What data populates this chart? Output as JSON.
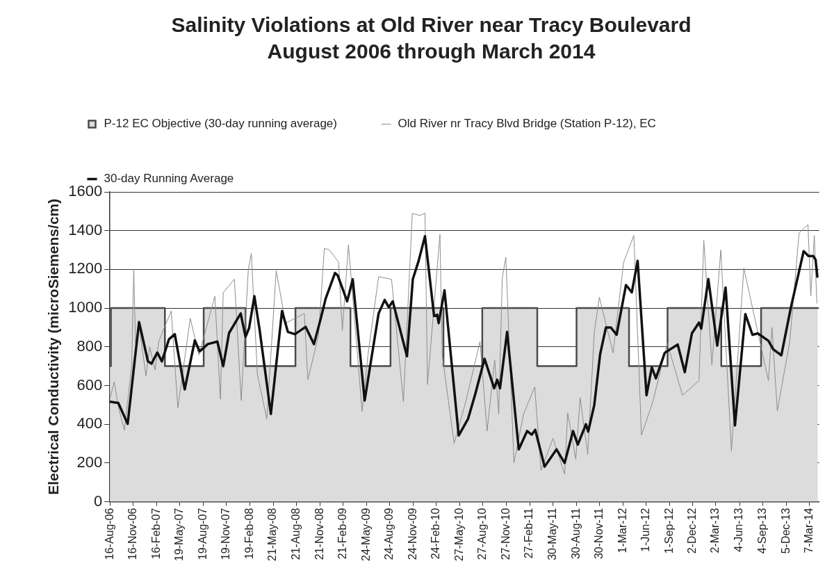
{
  "chart_data": {
    "type": "line",
    "title": "Salinity Violations at Old River near Tracy Boulevard",
    "subtitle": "August 2006 through March 2014",
    "ylabel": "Electrical Conductivity (microSiemens/cm)",
    "xlim": [
      "2006-08-16",
      "2014-04-14"
    ],
    "ylim": [
      0,
      1600
    ],
    "yticks": [
      0,
      200,
      400,
      600,
      800,
      1000,
      1200,
      1400,
      1600
    ],
    "xticks": [
      {
        "value": "2006-08-16",
        "label": "16-Aug-06"
      },
      {
        "value": "2006-11-16",
        "label": "16-Nov-06"
      },
      {
        "value": "2007-02-16",
        "label": "16-Feb-07"
      },
      {
        "value": "2007-05-19",
        "label": "19-May-07"
      },
      {
        "value": "2007-08-19",
        "label": "19-Aug-07"
      },
      {
        "value": "2007-11-19",
        "label": "19-Nov-07"
      },
      {
        "value": "2008-02-19",
        "label": "19-Feb-08"
      },
      {
        "value": "2008-05-21",
        "label": "21-May-08"
      },
      {
        "value": "2008-08-21",
        "label": "21-Aug-08"
      },
      {
        "value": "2008-11-21",
        "label": "21-Nov-08"
      },
      {
        "value": "2009-02-21",
        "label": "21-Feb-09"
      },
      {
        "value": "2009-05-24",
        "label": "24-May-09"
      },
      {
        "value": "2009-08-24",
        "label": "24-Aug-09"
      },
      {
        "value": "2009-11-24",
        "label": "24-Nov-09"
      },
      {
        "value": "2010-02-24",
        "label": "24-Feb-10"
      },
      {
        "value": "2010-05-27",
        "label": "27-May-10"
      },
      {
        "value": "2010-08-27",
        "label": "27-Aug-10"
      },
      {
        "value": "2010-11-27",
        "label": "27-Nov-10"
      },
      {
        "value": "2011-02-27",
        "label": "27-Feb-11"
      },
      {
        "value": "2011-05-30",
        "label": "30-May-11"
      },
      {
        "value": "2011-08-30",
        "label": "30-Aug-11"
      },
      {
        "value": "2011-11-30",
        "label": "30-Nov-11"
      },
      {
        "value": "2012-03-01",
        "label": "1-Mar-12"
      },
      {
        "value": "2012-06-01",
        "label": "1-Jun-12"
      },
      {
        "value": "2012-09-01",
        "label": "1-Sep-12"
      },
      {
        "value": "2012-12-02",
        "label": "2-Dec-12"
      },
      {
        "value": "2013-03-02",
        "label": "2-Mar-13"
      },
      {
        "value": "2013-06-04",
        "label": "4-Jun-13"
      },
      {
        "value": "2013-09-04",
        "label": "4-Sep-13"
      },
      {
        "value": "2013-12-05",
        "label": "5-Dec-13"
      },
      {
        "value": "2014-03-07",
        "label": "7-Mar-14"
      }
    ],
    "grid": "y",
    "legend": "top left",
    "marker": "none",
    "line_style": "solid",
    "series": [
      {
        "name": "P-12 EC Objective (30-day running average)",
        "type": "area",
        "color": "#dcdcdc",
        "x": [
          "2006-08-16",
          "2006-08-20",
          "2006-08-20",
          "2007-03-21",
          "2007-03-21",
          "2007-08-21",
          "2007-08-21",
          "2008-02-02",
          "2008-02-02",
          "2008-08-17",
          "2008-08-17",
          "2009-03-22",
          "2009-03-22",
          "2009-08-27",
          "2009-08-27",
          "2010-03-24",
          "2010-03-24",
          "2010-08-24",
          "2010-08-24",
          "2011-03-29",
          "2011-03-29",
          "2011-08-31",
          "2011-08-31",
          "2012-03-25",
          "2012-03-25",
          "2012-08-24",
          "2012-08-24",
          "2013-03-24",
          "2013-03-24",
          "2013-08-28",
          "2013-08-28",
          "2014-04-09"
        ],
        "values": [
          700,
          700,
          1000,
          1000,
          700,
          700,
          1000,
          1000,
          700,
          700,
          1000,
          1000,
          700,
          700,
          1000,
          1000,
          700,
          700,
          1000,
          1000,
          700,
          700,
          1000,
          1000,
          700,
          700,
          1000,
          1000,
          700,
          700,
          1000,
          1000
        ]
      },
      {
        "name": "Old River nr Tracy Blvd Bridge (Station P-12), EC",
        "type": "line",
        "color": "#8c8c8c",
        "x": [
          "2006-08-16",
          "2006-09-02",
          "2006-09-20",
          "2006-10-12",
          "2006-11-10",
          "2006-11-18",
          "2006-11-25",
          "2006-12-10",
          "2007-01-05",
          "2007-01-20",
          "2007-02-10",
          "2007-02-25",
          "2007-04-15",
          "2007-05-11",
          "2007-06-29",
          "2007-08-02",
          "2007-10-04",
          "2007-10-26",
          "2007-11-06",
          "2007-12-20",
          "2008-01-16",
          "2008-02-13",
          "2008-02-25",
          "2008-03-20",
          "2008-04-26",
          "2008-06-02",
          "2008-07-09",
          "2008-09-21",
          "2008-10-05",
          "2008-11-16",
          "2008-12-09",
          "2008-12-28",
          "2009-02-03",
          "2009-02-18",
          "2009-03-14",
          "2009-05-07",
          "2009-05-30",
          "2009-07-11",
          "2009-08-31",
          "2009-10-17",
          "2009-11-21",
          "2009-12-21",
          "2010-01-10",
          "2010-01-20",
          "2010-03-10",
          "2010-03-19",
          "2010-05-05",
          "2010-06-20",
          "2010-08-15",
          "2010-09-12",
          "2010-10-12",
          "2010-10-28",
          "2010-11-11",
          "2010-11-25",
          "2010-12-27",
          "2011-02-03",
          "2011-03-19",
          "2011-04-13",
          "2011-05-30",
          "2011-07-15",
          "2011-07-27",
          "2011-08-28",
          "2011-09-14",
          "2011-10-14",
          "2011-11-09",
          "2011-11-29",
          "2012-01-22",
          "2012-03-04",
          "2012-04-13",
          "2012-05-13",
          "2012-06-26",
          "2012-08-23",
          "2012-10-22",
          "2012-12-26",
          "2013-01-14",
          "2013-02-15",
          "2013-03-22",
          "2013-05-03",
          "2013-06-21",
          "2013-09-26",
          "2013-10-10",
          "2013-10-31",
          "2013-12-19",
          "2014-01-25",
          "2014-03-01",
          "2014-03-12",
          "2014-03-26",
          "2014-04-05"
        ],
        "values": [
          530,
          620,
          480,
          370,
          700,
          1200,
          820,
          900,
          650,
          800,
          680,
          830,
          985,
          485,
          947,
          757,
          1061,
          529,
          1080,
          1149,
          523,
          1200,
          1282,
          656,
          428,
          1194,
          922,
          972,
          630,
          858,
          1308,
          1301,
          1238,
          884,
          1327,
          466,
          757,
          1162,
          1149,
          516,
          1490,
          1478,
          1491,
          605,
          1380,
          757,
          301,
          516,
          827,
          365,
          732,
          453,
          1156,
          1263,
          200,
          453,
          592,
          162,
          327,
          143,
          459,
          219,
          538,
          244,
          875,
          1056,
          769,
          1238,
          1375,
          344,
          512,
          819,
          550,
          625,
          1350,
          706,
          1300,
          262,
          1206,
          625,
          900,
          469,
          825,
          1388,
          1431,
          1062,
          1375,
          1025
        ]
      },
      {
        "name": "30-day Running Average",
        "type": "line",
        "color": "#111111",
        "x": [
          "2006-08-16",
          "2006-09-18",
          "2006-10-25",
          "2006-11-22",
          "2006-12-09",
          "2007-01-13",
          "2007-01-27",
          "2007-02-19",
          "2007-03-09",
          "2007-04-06",
          "2007-04-29",
          "2007-06-07",
          "2007-07-17",
          "2007-08-05",
          "2007-09-06",
          "2007-10-14",
          "2007-11-06",
          "2007-11-29",
          "2007-12-22",
          "2008-01-14",
          "2008-02-02",
          "2008-02-16",
          "2008-03-08",
          "2008-03-29",
          "2008-05-12",
          "2008-06-25",
          "2008-07-18",
          "2008-08-15",
          "2008-09-26",
          "2008-10-29",
          "2008-11-25",
          "2008-12-14",
          "2009-01-20",
          "2009-01-31",
          "2009-03-09",
          "2009-03-31",
          "2009-05-17",
          "2009-07-11",
          "2009-08-04",
          "2009-08-20",
          "2009-09-05",
          "2009-10-31",
          "2009-11-23",
          "2009-12-16",
          "2010-01-10",
          "2010-02-15",
          "2010-02-27",
          "2010-03-05",
          "2010-03-28",
          "2010-05-23",
          "2010-06-29",
          "2010-07-27",
          "2010-09-02",
          "2010-10-10",
          "2010-10-22",
          "2010-11-02",
          "2010-11-30",
          "2011-01-15",
          "2011-02-17",
          "2011-03-07",
          "2011-03-21",
          "2011-04-27",
          "2011-06-13",
          "2011-07-15",
          "2011-08-17",
          "2011-09-05",
          "2011-10-07",
          "2011-10-16",
          "2011-11-09",
          "2011-12-02",
          "2011-12-25",
          "2012-01-13",
          "2012-02-05",
          "2012-03-13",
          "2012-04-05",
          "2012-04-28",
          "2012-06-02",
          "2012-06-23",
          "2012-07-09",
          "2012-08-13",
          "2012-10-03",
          "2012-10-31",
          "2012-11-28",
          "2012-12-26",
          "2013-01-04",
          "2013-02-01",
          "2013-03-08",
          "2013-04-10",
          "2013-05-17",
          "2013-06-27",
          "2013-07-25",
          "2013-08-15",
          "2013-09-26",
          "2013-10-15",
          "2013-11-16",
          "2013-12-23",
          "2014-02-12",
          "2014-03-03",
          "2014-03-22",
          "2014-03-31",
          "2014-04-07"
        ],
        "values": [
          516,
          510,
          402,
          732,
          928,
          725,
          713,
          770,
          725,
          839,
          865,
          580,
          833,
          776,
          814,
          827,
          700,
          871,
          922,
          972,
          852,
          896,
          1061,
          884,
          453,
          985,
          877,
          865,
          903,
          814,
          947,
          1048,
          1181,
          1168,
          1035,
          1149,
          523,
          972,
          1042,
          1004,
          1035,
          751,
          1149,
          1244,
          1371,
          959,
          966,
          922,
          1092,
          342,
          428,
          554,
          738,
          586,
          630,
          586,
          877,
          270,
          365,
          346,
          371,
          181,
          270,
          200,
          365,
          295,
          400,
          362,
          500,
          762,
          900,
          900,
          862,
          1119,
          1081,
          1244,
          550,
          694,
          637,
          769,
          812,
          669,
          869,
          925,
          894,
          1150,
          806,
          1106,
          394,
          969,
          862,
          869,
          831,
          787,
          756,
          1000,
          1294,
          1269,
          1269,
          1250,
          1162
        ]
      }
    ]
  }
}
